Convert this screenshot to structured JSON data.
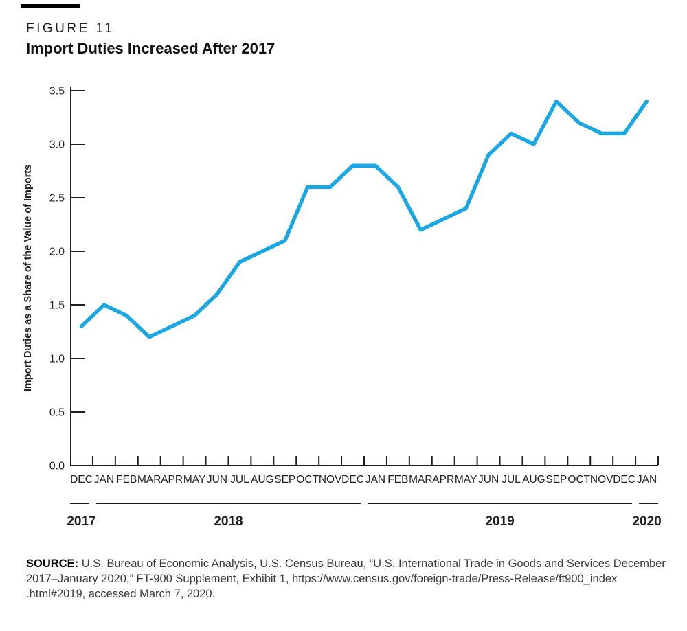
{
  "header": {
    "figure_label": "FIGURE 11",
    "title": "Import Duties Increased After 2017"
  },
  "chart_data": {
    "type": "line",
    "title": "Import Duties Increased After 2017",
    "xlabel": "",
    "ylabel": "Import Duties as a Share of the Value of Imports",
    "ylim": [
      0,
      3.5
    ],
    "ytick_labels": [
      "0.0",
      "0.5",
      "1.0",
      "1.5",
      "2.0",
      "2.5",
      "3.0",
      "3.5"
    ],
    "grid": false,
    "legend": "none",
    "line_color": "#1BA8E2",
    "axis_color": "#231f20",
    "x": [
      "DEC 2017",
      "JAN 2018",
      "FEB 2018",
      "MAR 2018",
      "APR 2018",
      "MAY 2018",
      "JUN 2018",
      "JUL 2018",
      "AUG 2018",
      "SEP 2018",
      "OCT 2018",
      "NOV 2018",
      "DEC 2018",
      "JAN 2019",
      "FEB 2019",
      "MAR 2019",
      "APR 2019",
      "MAY 2019",
      "JUN 2019",
      "JUL 2019",
      "AUG 2019",
      "SEP 2019",
      "OCT 2019",
      "NOV 2019",
      "DEC 2019",
      "JAN 2020"
    ],
    "month_labels": [
      "DEC",
      "JAN",
      "FEB",
      "MAR",
      "APR",
      "MAY",
      "JUN",
      "JUL",
      "AUG",
      "SEP",
      "OCT",
      "NOV",
      "DEC",
      "JAN",
      "FEB",
      "MAR",
      "APR",
      "MAY",
      "JUN",
      "JUL",
      "AUG",
      "SEP",
      "OCT",
      "NOV",
      "DEC",
      "JAN"
    ],
    "years": [
      {
        "label": "2017",
        "n_months": 1
      },
      {
        "label": "2018",
        "n_months": 12
      },
      {
        "label": "2019",
        "n_months": 12
      },
      {
        "label": "2020",
        "n_months": 1
      }
    ],
    "series": [
      {
        "name": "Import duties as a share of the value of imports",
        "values": [
          1.3,
          1.5,
          1.4,
          1.2,
          1.3,
          1.4,
          1.6,
          1.9,
          2.0,
          2.1,
          2.6,
          2.6,
          2.8,
          2.8,
          2.6,
          2.2,
          2.3,
          2.4,
          2.9,
          3.1,
          3.0,
          3.4,
          3.2,
          3.1,
          3.1,
          3.4
        ]
      }
    ]
  },
  "source": {
    "label": "SOURCE:",
    "lines": [
      "U.S. Bureau of Economic Analysis, U.S. Census Bureau, “U.S. International Trade in Goods and Services December",
      "2017–January 2020,” FT-900 Supplement, Exhibit 1, https://www.census.gov/foreign-trade/Press-Release/ft900_index",
      ".html#2019, accessed March 7, 2020."
    ]
  }
}
